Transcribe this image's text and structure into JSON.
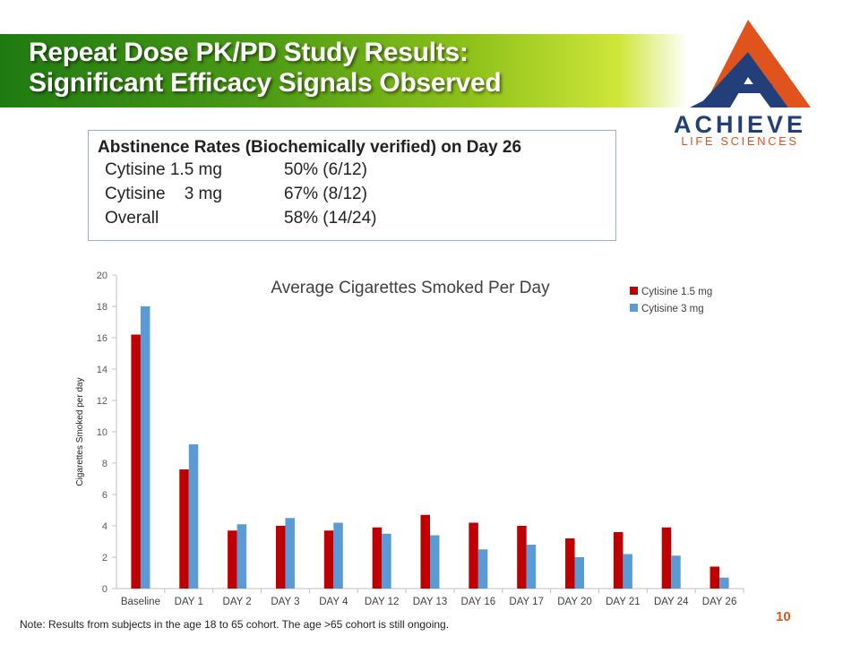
{
  "slide": {
    "title_line1": "Repeat Dose PK/PD Study Results:",
    "title_line2": "Significant Efficacy Signals Observed",
    "logo_name": "ACHIEVE",
    "logo_sub": "LIFE SCIENCES",
    "page_number": "10",
    "note": "Note: Results from subjects in the age 18 to 65 cohort. The age >65 cohort is still ongoing."
  },
  "abstinence": {
    "heading": "Abstinence Rates (Biochemically verified) on Day 26",
    "rows": [
      {
        "label": "Cytisine 1.5 mg",
        "value": "50% (6/12)"
      },
      {
        "label": "Cytisine    3 mg",
        "value": "67% (8/12)"
      },
      {
        "label": "Overall",
        "value": "58% (14/24)"
      }
    ]
  },
  "colors": {
    "series1": "#c00000",
    "series2": "#5b9bd5",
    "logo_blue": "#233f7a",
    "logo_orange": "#e0531d"
  },
  "chart_data": {
    "type": "bar",
    "title": "Average Cigarettes Smoked Per Day",
    "ylabel": "Cigarettes Smoked per day",
    "xlabel": "",
    "ylim": [
      0,
      20
    ],
    "yticks": [
      0,
      2,
      4,
      6,
      8,
      10,
      12,
      14,
      16,
      18,
      20
    ],
    "legend_position": "top-right",
    "grid": false,
    "categories": [
      "Baseline",
      "DAY 1",
      "DAY 2",
      "DAY 3",
      "DAY 4",
      "DAY 12",
      "DAY 13",
      "DAY 16",
      "DAY 17",
      "DAY 20",
      "DAY 21",
      "DAY 24",
      "DAY 26"
    ],
    "series": [
      {
        "name": "Cytisine 1.5 mg",
        "values": [
          16.2,
          7.6,
          3.7,
          4.0,
          3.7,
          3.9,
          4.7,
          4.2,
          4.0,
          3.2,
          3.6,
          3.9,
          1.4
        ]
      },
      {
        "name": "Cytisine 3 mg",
        "values": [
          18.0,
          9.2,
          4.1,
          4.5,
          4.2,
          3.5,
          3.4,
          2.5,
          2.8,
          2.0,
          2.2,
          2.1,
          0.7
        ]
      }
    ]
  }
}
